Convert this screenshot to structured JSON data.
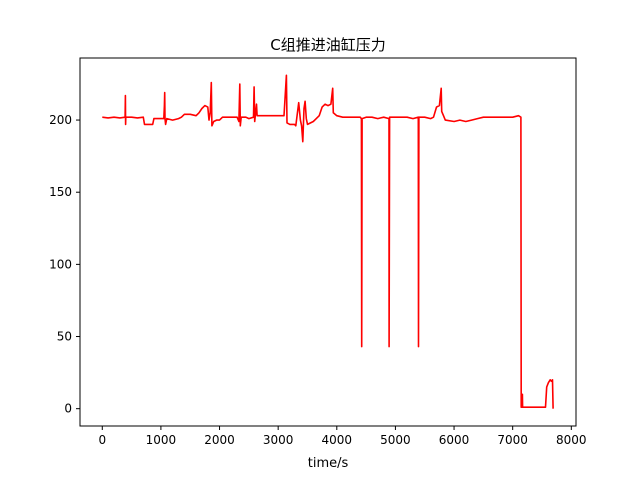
{
  "chart_data": {
    "type": "line",
    "title": "C组推进油缸压力",
    "xlabel": "time/s",
    "ylabel": "",
    "xlim": [
      -380,
      8080
    ],
    "ylim": [
      -12,
      243
    ],
    "xticks": [
      0,
      1000,
      2000,
      3000,
      4000,
      5000,
      6000,
      7000,
      8000
    ],
    "yticks": [
      0,
      50,
      100,
      150,
      200
    ],
    "grid": false,
    "legend": "none",
    "series": [
      {
        "color": "#ff0000",
        "points": [
          [
            0,
            202
          ],
          [
            100,
            201.5
          ],
          [
            200,
            202
          ],
          [
            300,
            201.5
          ],
          [
            390,
            202
          ],
          [
            395,
            217
          ],
          [
            398,
            197
          ],
          [
            402,
            202
          ],
          [
            500,
            202
          ],
          [
            600,
            201.5
          ],
          [
            700,
            202
          ],
          [
            720,
            197
          ],
          [
            800,
            197
          ],
          [
            860,
            197
          ],
          [
            880,
            201
          ],
          [
            1000,
            201
          ],
          [
            1050,
            201
          ],
          [
            1060,
            210
          ],
          [
            1065,
            219
          ],
          [
            1070,
            201
          ],
          [
            1080,
            197
          ],
          [
            1100,
            201
          ],
          [
            1200,
            200
          ],
          [
            1300,
            201
          ],
          [
            1350,
            202
          ],
          [
            1400,
            204
          ],
          [
            1500,
            204
          ],
          [
            1600,
            203
          ],
          [
            1650,
            205
          ],
          [
            1700,
            208
          ],
          [
            1750,
            210
          ],
          [
            1800,
            209
          ],
          [
            1820,
            200
          ],
          [
            1840,
            205
          ],
          [
            1860,
            226
          ],
          [
            1870,
            196
          ],
          [
            1880,
            197
          ],
          [
            1900,
            199
          ],
          [
            1950,
            200
          ],
          [
            2000,
            200
          ],
          [
            2050,
            202
          ],
          [
            2100,
            202
          ],
          [
            2200,
            202
          ],
          [
            2300,
            202
          ],
          [
            2330,
            199
          ],
          [
            2345,
            225
          ],
          [
            2355,
            196
          ],
          [
            2370,
            202
          ],
          [
            2450,
            202
          ],
          [
            2500,
            201
          ],
          [
            2580,
            202
          ],
          [
            2590,
            223
          ],
          [
            2600,
            199
          ],
          [
            2630,
            211
          ],
          [
            2640,
            203
          ],
          [
            2700,
            203
          ],
          [
            2800,
            203
          ],
          [
            2900,
            203
          ],
          [
            3000,
            203
          ],
          [
            3100,
            203
          ],
          [
            3140,
            231
          ],
          [
            3150,
            198
          ],
          [
            3200,
            197
          ],
          [
            3280,
            197
          ],
          [
            3300,
            196
          ],
          [
            3350,
            212
          ],
          [
            3380,
            200
          ],
          [
            3400,
            196
          ],
          [
            3420,
            185
          ],
          [
            3440,
            208
          ],
          [
            3460,
            213
          ],
          [
            3480,
            201
          ],
          [
            3500,
            197
          ],
          [
            3600,
            199
          ],
          [
            3650,
            201
          ],
          [
            3700,
            203
          ],
          [
            3750,
            209
          ],
          [
            3800,
            211
          ],
          [
            3850,
            210
          ],
          [
            3900,
            211
          ],
          [
            3930,
            222
          ],
          [
            3940,
            205
          ],
          [
            4000,
            203
          ],
          [
            4100,
            202
          ],
          [
            4200,
            202
          ],
          [
            4300,
            202
          ],
          [
            4400,
            202
          ],
          [
            4420,
            201
          ],
          [
            4425,
            43
          ],
          [
            4432,
            201
          ],
          [
            4500,
            202
          ],
          [
            4600,
            202
          ],
          [
            4700,
            201
          ],
          [
            4800,
            202
          ],
          [
            4890,
            201
          ],
          [
            4893,
            43
          ],
          [
            4900,
            202
          ],
          [
            5000,
            202
          ],
          [
            5100,
            202
          ],
          [
            5200,
            202
          ],
          [
            5300,
            201
          ],
          [
            5390,
            202
          ],
          [
            5393,
            43
          ],
          [
            5400,
            202
          ],
          [
            5500,
            202
          ],
          [
            5600,
            201
          ],
          [
            5650,
            202
          ],
          [
            5700,
            209
          ],
          [
            5750,
            210
          ],
          [
            5780,
            222
          ],
          [
            5790,
            206
          ],
          [
            5820,
            203
          ],
          [
            5850,
            200
          ],
          [
            6000,
            199
          ],
          [
            6100,
            200
          ],
          [
            6200,
            199
          ],
          [
            6300,
            200
          ],
          [
            6400,
            201
          ],
          [
            6500,
            202
          ],
          [
            6600,
            202
          ],
          [
            6700,
            202
          ],
          [
            6800,
            202
          ],
          [
            6900,
            202
          ],
          [
            7000,
            202
          ],
          [
            7100,
            203
          ],
          [
            7140,
            202
          ],
          [
            7145,
            1
          ],
          [
            7160,
            1
          ],
          [
            7165,
            10
          ],
          [
            7170,
            1
          ],
          [
            7300,
            1
          ],
          [
            7500,
            1
          ],
          [
            7560,
            1
          ],
          [
            7580,
            15
          ],
          [
            7610,
            18
          ],
          [
            7640,
            20
          ],
          [
            7660,
            19
          ],
          [
            7680,
            20
          ],
          [
            7690,
            0
          ]
        ]
      }
    ]
  }
}
